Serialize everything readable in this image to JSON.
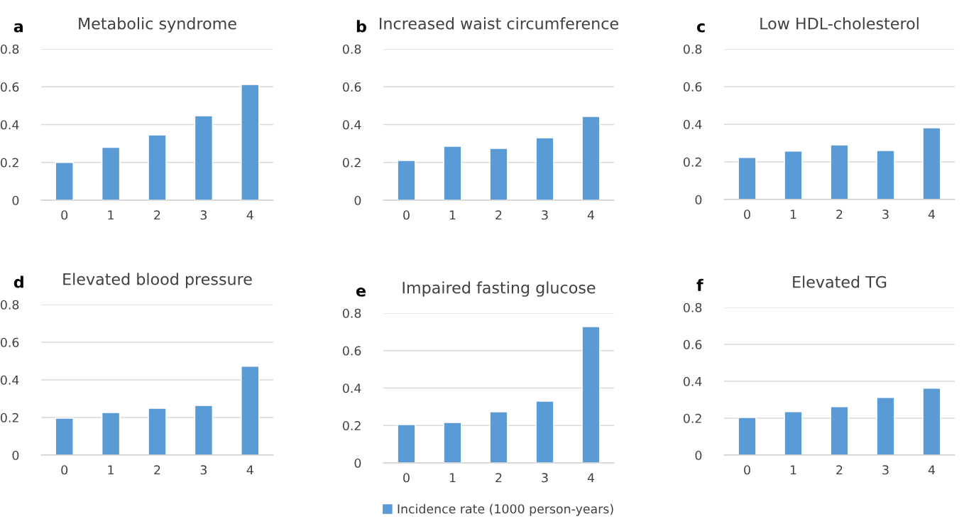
{
  "chart_data": [
    {
      "type": "bar",
      "title": "Metabolic syndrome",
      "annotations": [
        "a"
      ],
      "categories": [
        "0",
        "1",
        "2",
        "3",
        "4"
      ],
      "series": [
        {
          "color": "#5b9bd5",
          "values": [
            0.2,
            0.28,
            0.345,
            0.447,
            0.612
          ]
        }
      ],
      "ylim": [
        0,
        0.8
      ],
      "yticks": [
        0,
        0.2,
        0.4,
        0.6,
        0.8
      ],
      "grid": "y"
    },
    {
      "type": "bar",
      "title": "Increased waist circumference",
      "annotations": [
        "b"
      ],
      "categories": [
        "0",
        "1",
        "2",
        "3",
        "4"
      ],
      "series": [
        {
          "color": "#5b9bd5",
          "values": [
            0.21,
            0.285,
            0.274,
            0.33,
            0.443
          ]
        }
      ],
      "ylim": [
        0,
        0.8
      ],
      "yticks": [
        0,
        0.2,
        0.4,
        0.6,
        0.8
      ],
      "grid": "y"
    },
    {
      "type": "bar",
      "title": "Low HDL-cholesterol",
      "annotations": [
        "c"
      ],
      "categories": [
        "0",
        "1",
        "2",
        "3",
        "4"
      ],
      "series": [
        {
          "color": "#5b9bd5",
          "values": [
            0.223,
            0.257,
            0.29,
            0.26,
            0.381
          ]
        }
      ],
      "ylim": [
        0,
        0.8
      ],
      "yticks": [
        0,
        0.2,
        0.4,
        0.6,
        0.8
      ],
      "grid": "y"
    },
    {
      "type": "bar",
      "title": "Elevated blood pressure",
      "annotations": [
        "d"
      ],
      "categories": [
        "0",
        "1",
        "2",
        "3",
        "4"
      ],
      "series": [
        {
          "color": "#5b9bd5",
          "values": [
            0.196,
            0.226,
            0.249,
            0.264,
            0.472
          ]
        }
      ],
      "ylim": [
        0,
        0.8
      ],
      "yticks": [
        0,
        0.2,
        0.4,
        0.6,
        0.8
      ],
      "grid": "y"
    },
    {
      "type": "bar",
      "title": "Impaired fasting glucose",
      "annotations": [
        "e"
      ],
      "categories": [
        "0",
        "1",
        "2",
        "3",
        "4"
      ],
      "series": [
        {
          "name": "Incidence rate (1000 person-years)",
          "color": "#5b9bd5",
          "values": [
            0.205,
            0.216,
            0.273,
            0.33,
            0.728
          ]
        }
      ],
      "ylim": [
        0,
        0.8
      ],
      "yticks": [
        0,
        0.2,
        0.4,
        0.6,
        0.8
      ],
      "grid": "y",
      "legend": "bottom"
    },
    {
      "type": "bar",
      "title": "Elevated TG",
      "annotations": [
        "f"
      ],
      "categories": [
        "0",
        "1",
        "2",
        "3",
        "4"
      ],
      "series": [
        {
          "color": "#5b9bd5",
          "values": [
            0.204,
            0.235,
            0.262,
            0.312,
            0.362
          ]
        }
      ],
      "ylim": [
        0,
        0.8
      ],
      "yticks": [
        0,
        0.2,
        0.4,
        0.6,
        0.8
      ],
      "grid": "y"
    }
  ]
}
